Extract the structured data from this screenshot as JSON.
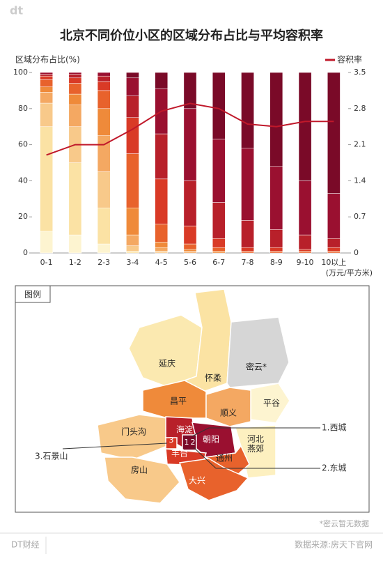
{
  "brand": "dt",
  "chart_data": {
    "type": "bar",
    "stacked": true,
    "title": "北京不同价位小区的区域分布占比与平均容积率",
    "y_label": "区域分布占比(%)",
    "x_label": "(万元/平方米)",
    "categories": [
      "0-1",
      "1-2",
      "2-3",
      "3-4",
      "4-5",
      "5-6",
      "6-7",
      "7-8",
      "8-9",
      "9-10",
      "10以上"
    ],
    "ylim": [
      0,
      100
    ],
    "yticks": [
      0,
      20,
      40,
      60,
      80,
      100
    ],
    "y2lim": [
      0,
      3.5
    ],
    "y2ticks": [
      0,
      0.7,
      1.4,
      2.1,
      2.8,
      3.5
    ],
    "grid": false,
    "legend": "top-right",
    "series": [
      {
        "color": "#fdf4d0",
        "values": [
          12,
          10,
          5,
          0,
          0,
          0,
          0,
          0,
          0,
          0,
          0
        ]
      },
      {
        "color": "#fbe2a4",
        "values": [
          58,
          40,
          20,
          1,
          0,
          0,
          0,
          0,
          0,
          0,
          0
        ]
      },
      {
        "color": "#f8c98a",
        "values": [
          13,
          20,
          20,
          3,
          1,
          0,
          0,
          0,
          0,
          0,
          0
        ]
      },
      {
        "color": "#f4a862",
        "values": [
          6,
          12,
          20,
          6,
          2,
          1,
          0,
          0,
          0,
          0,
          0
        ]
      },
      {
        "color": "#ef8a3a",
        "values": [
          3,
          6,
          15,
          15,
          3,
          1,
          1,
          0,
          0,
          0,
          0
        ]
      },
      {
        "color": "#e8622c",
        "values": [
          4,
          6,
          10,
          30,
          10,
          3,
          2,
          1,
          1,
          1,
          1
        ]
      },
      {
        "color": "#d93a26",
        "values": [
          2,
          3,
          5,
          20,
          25,
          10,
          5,
          2,
          2,
          1,
          2
        ]
      },
      {
        "color": "#b8202a",
        "values": [
          1,
          2,
          3,
          12,
          25,
          25,
          20,
          15,
          10,
          8,
          5
        ]
      },
      {
        "color": "#9a1030",
        "values": [
          1,
          1,
          2,
          10,
          25,
          40,
          35,
          40,
          35,
          30,
          25
        ]
      },
      {
        "color": "#7a0a28",
        "values": [
          0,
          0,
          0,
          3,
          9,
          20,
          37,
          42,
          52,
          60,
          67
        ]
      },
      {
        "name": "容积率",
        "type": "line",
        "axis": "y2",
        "color": "#c0182a",
        "values": [
          1.9,
          2.1,
          2.1,
          2.4,
          2.75,
          2.9,
          2.8,
          2.5,
          2.45,
          2.55,
          2.55
        ]
      }
    ]
  },
  "map": {
    "title": "图例",
    "labels": [
      "延庆",
      "怀柔",
      "密云*",
      "平谷",
      "昌平",
      "顺义",
      "门头沟",
      "海淀",
      "朝阳",
      "河北燕郊",
      "丰台",
      "通州",
      "房山",
      "大兴",
      "3",
      "1",
      "2"
    ],
    "callouts": [
      "1.西城",
      "2.东城",
      "3.石景山"
    ],
    "note": "*密云暂无数据"
  },
  "footer": {
    "brand": "DT财经",
    "source": "数据来源:房天下官网"
  }
}
